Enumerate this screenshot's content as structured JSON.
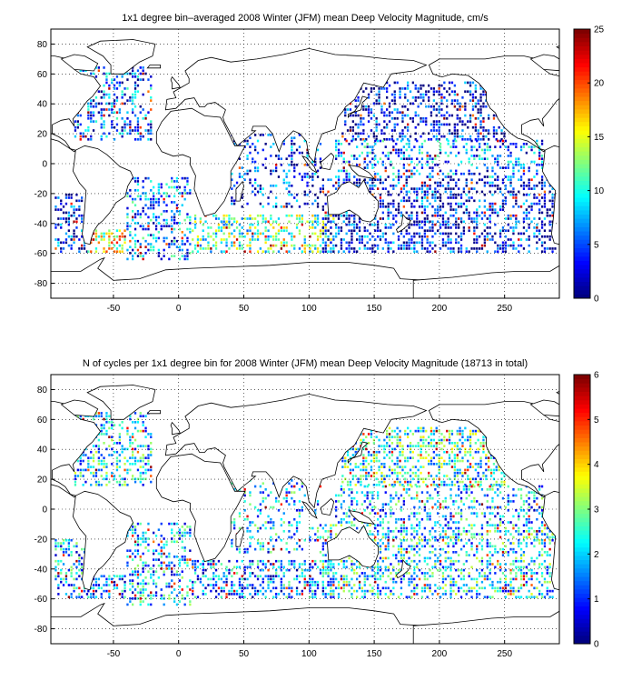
{
  "chart_data": [
    {
      "type": "heatmap",
      "title": "1x1 degree bin–averaged 2008 Winter (JFM) mean Deep Velocity Magnitude, cm/s",
      "xlabel": "",
      "ylabel": "",
      "xlim": [
        -98,
        292
      ],
      "ylim": [
        -90,
        90
      ],
      "x_ticks": [
        "-50",
        "0",
        "50",
        "100",
        "150",
        "200",
        "250"
      ],
      "y_ticks": [
        "80",
        "60",
        "40",
        "20",
        "0",
        "-20",
        "-40",
        "-60",
        "-80"
      ],
      "grid": true,
      "colorbar": {
        "min": 0,
        "max": 25,
        "ticks": [
          "25",
          "20",
          "15",
          "10",
          "5",
          "0"
        ],
        "colormap": "jet"
      },
      "regions": [
        {
          "lon": [
            -80,
            -20
          ],
          "lat": [
            15,
            65
          ],
          "level": 0.2,
          "density": 0.35
        },
        {
          "lon": [
            -40,
            10
          ],
          "lat": [
            -65,
            -10
          ],
          "level": 0.25,
          "density": 0.35
        },
        {
          "lon": [
            10,
            120
          ],
          "lat": [
            -60,
            -35
          ],
          "level": 0.45,
          "density": 0.45
        },
        {
          "lon": [
            40,
            110
          ],
          "lat": [
            -30,
            20
          ],
          "level": 0.15,
          "density": 0.25
        },
        {
          "lon": [
            110,
            290
          ],
          "lat": [
            -60,
            -10
          ],
          "level": 0.12,
          "density": 0.45
        },
        {
          "lon": [
            125,
            250
          ],
          "lat": [
            15,
            55
          ],
          "level": 0.1,
          "density": 0.4
        },
        {
          "lon": [
            120,
            280
          ],
          "lat": [
            -10,
            15
          ],
          "level": 0.25,
          "density": 0.35
        },
        {
          "lon": [
            -95,
            -70
          ],
          "lat": [
            -60,
            -20
          ],
          "level": 0.12,
          "density": 0.4
        },
        {
          "lon": [
            -70,
            -40
          ],
          "lat": [
            -60,
            -45
          ],
          "level": 0.6,
          "density": 0.5
        }
      ]
    },
    {
      "type": "heatmap",
      "title": "N of cycles per 1x1 degree bin for 2008 Winter (JFM) mean Deep Velocity Magnitude (18713 in total)",
      "xlabel": "",
      "ylabel": "",
      "xlim": [
        -98,
        292
      ],
      "ylim": [
        -90,
        90
      ],
      "x_ticks": [
        "-50",
        "0",
        "50",
        "100",
        "150",
        "200",
        "250"
      ],
      "y_ticks": [
        "80",
        "60",
        "40",
        "20",
        "0",
        "-20",
        "-40",
        "-60",
        "-80"
      ],
      "grid": true,
      "colorbar": {
        "min": 0,
        "max": 6,
        "ticks": [
          "6",
          "5",
          "4",
          "3",
          "2",
          "1",
          "0"
        ],
        "colormap": "jet"
      },
      "regions": [
        {
          "lon": [
            -80,
            -20
          ],
          "lat": [
            15,
            65
          ],
          "level": 0.35,
          "density": 0.4
        },
        {
          "lon": [
            -40,
            10
          ],
          "lat": [
            -65,
            -10
          ],
          "level": 0.3,
          "density": 0.35
        },
        {
          "lon": [
            10,
            120
          ],
          "lat": [
            -60,
            -35
          ],
          "level": 0.25,
          "density": 0.45
        },
        {
          "lon": [
            40,
            110
          ],
          "lat": [
            -30,
            20
          ],
          "level": 0.3,
          "density": 0.25
        },
        {
          "lon": [
            110,
            290
          ],
          "lat": [
            -60,
            -10
          ],
          "level": 0.35,
          "density": 0.45
        },
        {
          "lon": [
            125,
            250
          ],
          "lat": [
            15,
            55
          ],
          "level": 0.4,
          "density": 0.45
        },
        {
          "lon": [
            120,
            280
          ],
          "lat": [
            -10,
            15
          ],
          "level": 0.3,
          "density": 0.35
        },
        {
          "lon": [
            -95,
            -70
          ],
          "lat": [
            -60,
            -20
          ],
          "level": 0.3,
          "density": 0.4
        },
        {
          "lon": [
            -70,
            -40
          ],
          "lat": [
            -60,
            -45
          ],
          "level": 0.25,
          "density": 0.5
        }
      ]
    }
  ]
}
